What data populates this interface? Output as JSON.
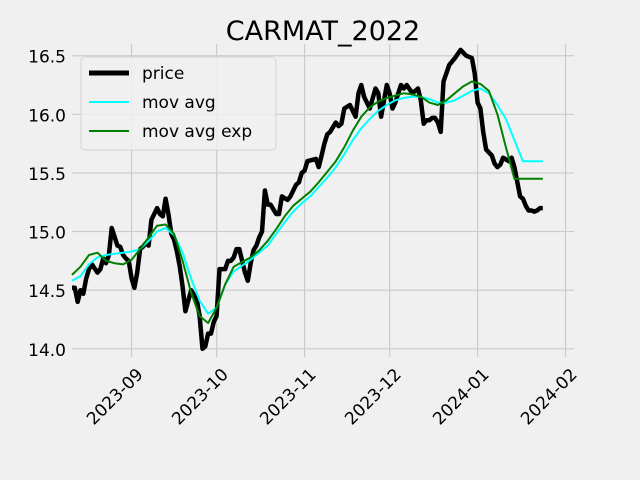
{
  "chart_data": {
    "type": "line",
    "title": "CARMAT_2022",
    "xlabel": "",
    "ylabel": "",
    "x_start": "2023-08-07",
    "x_ticks": [
      "2023-09",
      "2023-10",
      "2023-11",
      "2023-12",
      "2024-01",
      "2024-02"
    ],
    "x_tick_dates": [
      "2023-09-01",
      "2023-10-01",
      "2023-11-01",
      "2023-12-01",
      "2024-01-01",
      "2024-02-01"
    ],
    "xlim": [
      "2023-08-11",
      "2024-02-04"
    ],
    "y_ticks": [
      "14.0",
      "14.5",
      "15.0",
      "15.5",
      "16.0",
      "16.5"
    ],
    "ylim": [
      13.93,
      16.6
    ],
    "grid": true,
    "legend_position": "top-left",
    "colors": {
      "price": "#000000",
      "mov_avg": "#00ffff",
      "mov_avg_exp": "#008000",
      "background": "#f0f0f0",
      "grid": "#cbcbcb"
    },
    "series": [
      {
        "name": "price",
        "color": "#000000",
        "x": [
          "2023-08-11",
          "2023-08-12",
          "2023-08-13",
          "2023-08-14",
          "2023-08-15",
          "2023-08-16",
          "2023-08-17",
          "2023-08-18",
          "2023-08-20",
          "2023-08-21",
          "2023-08-22",
          "2023-08-23",
          "2023-08-24",
          "2023-08-25",
          "2023-08-27",
          "2023-08-28",
          "2023-08-29",
          "2023-08-30",
          "2023-08-31",
          "2023-09-01",
          "2023-09-02",
          "2023-09-03",
          "2023-09-04",
          "2023-09-05",
          "2023-09-06",
          "2023-09-07",
          "2023-09-08",
          "2023-09-10",
          "2023-09-11",
          "2023-09-12",
          "2023-09-13",
          "2023-09-14",
          "2023-09-15",
          "2023-09-16",
          "2023-09-17",
          "2023-09-18",
          "2023-09-19",
          "2023-09-20",
          "2023-09-22",
          "2023-09-24",
          "2023-09-25",
          "2023-09-26",
          "2023-09-27",
          "2023-09-28",
          "2023-09-29",
          "2023-09-30",
          "2023-10-01",
          "2023-10-02",
          "2023-10-04",
          "2023-10-05",
          "2023-10-06",
          "2023-10-07",
          "2023-10-08",
          "2023-10-09",
          "2023-10-11",
          "2023-10-12",
          "2023-10-13",
          "2023-10-14",
          "2023-10-15",
          "2023-10-16",
          "2023-10-17",
          "2023-10-18",
          "2023-10-19",
          "2023-10-20",
          "2023-10-22",
          "2023-10-23",
          "2023-10-24",
          "2023-10-26",
          "2023-10-27",
          "2023-10-29",
          "2023-10-30",
          "2023-10-31",
          "2023-11-01",
          "2023-11-02",
          "2023-11-05",
          "2023-11-06",
          "2023-11-07",
          "2023-11-08",
          "2023-11-09",
          "2023-11-10",
          "2023-11-12",
          "2023-11-13",
          "2023-11-14",
          "2023-11-15",
          "2023-11-17",
          "2023-11-19",
          "2023-11-20",
          "2023-11-21",
          "2023-11-22",
          "2023-11-24",
          "2023-11-26",
          "2023-11-27",
          "2023-11-28",
          "2023-11-30",
          "2023-12-01",
          "2023-12-02",
          "2023-12-03",
          "2023-12-05",
          "2023-12-06",
          "2023-12-07",
          "2023-12-09",
          "2023-12-10",
          "2023-12-11",
          "2023-12-12",
          "2023-12-13",
          "2023-12-14",
          "2023-12-15",
          "2023-12-16",
          "2023-12-17",
          "2023-12-18",
          "2023-12-19",
          "2023-12-20",
          "2023-12-21",
          "2023-12-22",
          "2023-12-24",
          "2023-12-26",
          "2023-12-28",
          "2023-12-30",
          "2023-12-31",
          "2024-01-01",
          "2024-01-02",
          "2024-01-03",
          "2024-01-04",
          "2024-01-06",
          "2024-01-07",
          "2024-01-08",
          "2024-01-09",
          "2024-01-10",
          "2024-01-12",
          "2024-01-13",
          "2024-01-14",
          "2024-01-16",
          "2024-01-17",
          "2024-01-18",
          "2024-01-19",
          "2024-01-20",
          "2024-01-21",
          "2024-01-22",
          "2024-01-23",
          "2024-01-24"
        ],
        "y": [
          14.52,
          14.52,
          14.4,
          14.5,
          14.47,
          14.6,
          14.68,
          14.72,
          14.65,
          14.68,
          14.77,
          14.73,
          14.8,
          15.03,
          14.88,
          14.87,
          14.8,
          14.77,
          14.75,
          14.6,
          14.52,
          14.65,
          14.85,
          14.87,
          14.9,
          14.88,
          15.1,
          15.2,
          15.15,
          15.13,
          15.28,
          15.15,
          14.98,
          14.93,
          14.83,
          14.7,
          14.53,
          14.32,
          14.5,
          14.42,
          14.28,
          14.0,
          14.02,
          14.13,
          14.13,
          14.23,
          14.28,
          14.68,
          14.68,
          14.75,
          14.75,
          14.78,
          14.85,
          14.85,
          14.65,
          14.58,
          14.73,
          14.84,
          14.88,
          14.95,
          15.0,
          15.35,
          15.23,
          15.23,
          15.15,
          15.15,
          15.3,
          15.27,
          15.3,
          15.4,
          15.42,
          15.5,
          15.52,
          15.6,
          15.62,
          15.55,
          15.65,
          15.75,
          15.83,
          15.85,
          15.93,
          15.9,
          15.92,
          16.05,
          16.08,
          15.98,
          16.18,
          16.25,
          16.15,
          16.05,
          16.22,
          16.18,
          15.98,
          16.25,
          16.18,
          16.05,
          16.1,
          16.25,
          16.22,
          16.25,
          16.18,
          16.2,
          16.22,
          16.12,
          15.92,
          15.95,
          15.95,
          15.97,
          15.97,
          15.93,
          15.85,
          16.28,
          16.35,
          16.42,
          16.48,
          16.55,
          16.5,
          16.48,
          16.35,
          16.1,
          16.05,
          15.85,
          15.7,
          15.65,
          15.58,
          15.55,
          15.57,
          15.63,
          15.6,
          15.63,
          15.55,
          15.3,
          15.28,
          15.22,
          15.18,
          15.18,
          15.17,
          15.18,
          15.2,
          15.2
        ]
      },
      {
        "name": "mov avg",
        "color": "#00ffff",
        "x": [
          "2023-08-11",
          "2023-08-14",
          "2023-08-17",
          "2023-08-20",
          "2023-08-23",
          "2023-08-26",
          "2023-08-29",
          "2023-09-01",
          "2023-09-04",
          "2023-09-07",
          "2023-09-10",
          "2023-09-13",
          "2023-09-16",
          "2023-09-19",
          "2023-09-22",
          "2023-09-25",
          "2023-09-28",
          "2023-10-01",
          "2023-10-04",
          "2023-10-07",
          "2023-10-10",
          "2023-10-13",
          "2023-10-16",
          "2023-10-19",
          "2023-10-22",
          "2023-10-25",
          "2023-10-28",
          "2023-10-31",
          "2023-11-03",
          "2023-11-06",
          "2023-11-09",
          "2023-11-12",
          "2023-11-15",
          "2023-11-18",
          "2023-11-21",
          "2023-11-24",
          "2023-11-27",
          "2023-11-30",
          "2023-12-03",
          "2023-12-06",
          "2023-12-09",
          "2023-12-12",
          "2023-12-15",
          "2023-12-18",
          "2023-12-21",
          "2023-12-24",
          "2023-12-27",
          "2023-12-30",
          "2024-01-02",
          "2024-01-05",
          "2024-01-08",
          "2024-01-11",
          "2024-01-14",
          "2024-01-17",
          "2024-01-20",
          "2024-01-23",
          "2024-01-24"
        ],
        "y": [
          14.58,
          14.62,
          14.72,
          14.78,
          14.8,
          14.81,
          14.82,
          14.83,
          14.85,
          14.92,
          15.0,
          15.03,
          14.97,
          14.82,
          14.6,
          14.41,
          14.3,
          14.35,
          14.55,
          14.66,
          14.71,
          14.76,
          14.82,
          14.88,
          14.98,
          15.08,
          15.17,
          15.24,
          15.3,
          15.38,
          15.46,
          15.55,
          15.66,
          15.78,
          15.88,
          15.96,
          16.03,
          16.08,
          16.12,
          16.14,
          16.15,
          16.15,
          16.13,
          16.1,
          16.1,
          16.12,
          16.16,
          16.2,
          16.22,
          16.18,
          16.08,
          15.96,
          15.78,
          15.6,
          15.6,
          15.6,
          15.6
        ]
      },
      {
        "name": "mov avg exp",
        "color": "#008000",
        "x": [
          "2023-08-11",
          "2023-08-14",
          "2023-08-17",
          "2023-08-20",
          "2023-08-23",
          "2023-08-26",
          "2023-08-29",
          "2023-09-01",
          "2023-09-04",
          "2023-09-07",
          "2023-09-10",
          "2023-09-13",
          "2023-09-16",
          "2023-09-19",
          "2023-09-22",
          "2023-09-25",
          "2023-09-28",
          "2023-10-01",
          "2023-10-04",
          "2023-10-07",
          "2023-10-10",
          "2023-10-13",
          "2023-10-16",
          "2023-10-19",
          "2023-10-22",
          "2023-10-25",
          "2023-10-28",
          "2023-10-31",
          "2023-11-03",
          "2023-11-06",
          "2023-11-09",
          "2023-11-12",
          "2023-11-15",
          "2023-11-18",
          "2023-11-21",
          "2023-11-24",
          "2023-11-27",
          "2023-11-30",
          "2023-12-03",
          "2023-12-06",
          "2023-12-09",
          "2023-12-12",
          "2023-12-15",
          "2023-12-18",
          "2023-12-21",
          "2023-12-24",
          "2023-12-27",
          "2023-12-30",
          "2024-01-02",
          "2024-01-05",
          "2024-01-08",
          "2024-01-11",
          "2024-01-14",
          "2024-01-17",
          "2024-01-20",
          "2024-01-23",
          "2024-01-24"
        ],
        "y": [
          14.63,
          14.7,
          14.8,
          14.82,
          14.75,
          14.73,
          14.72,
          14.76,
          14.85,
          14.95,
          15.05,
          15.06,
          14.98,
          14.75,
          14.48,
          14.28,
          14.22,
          14.35,
          14.55,
          14.7,
          14.74,
          14.78,
          14.84,
          14.92,
          15.02,
          15.13,
          15.22,
          15.28,
          15.34,
          15.42,
          15.51,
          15.6,
          15.72,
          15.86,
          15.98,
          16.06,
          16.11,
          16.14,
          16.16,
          16.18,
          16.17,
          16.15,
          16.1,
          16.08,
          16.12,
          16.18,
          16.24,
          16.28,
          16.26,
          16.2,
          16.0,
          15.72,
          15.45,
          15.45,
          15.45,
          15.45,
          15.45
        ]
      }
    ]
  }
}
